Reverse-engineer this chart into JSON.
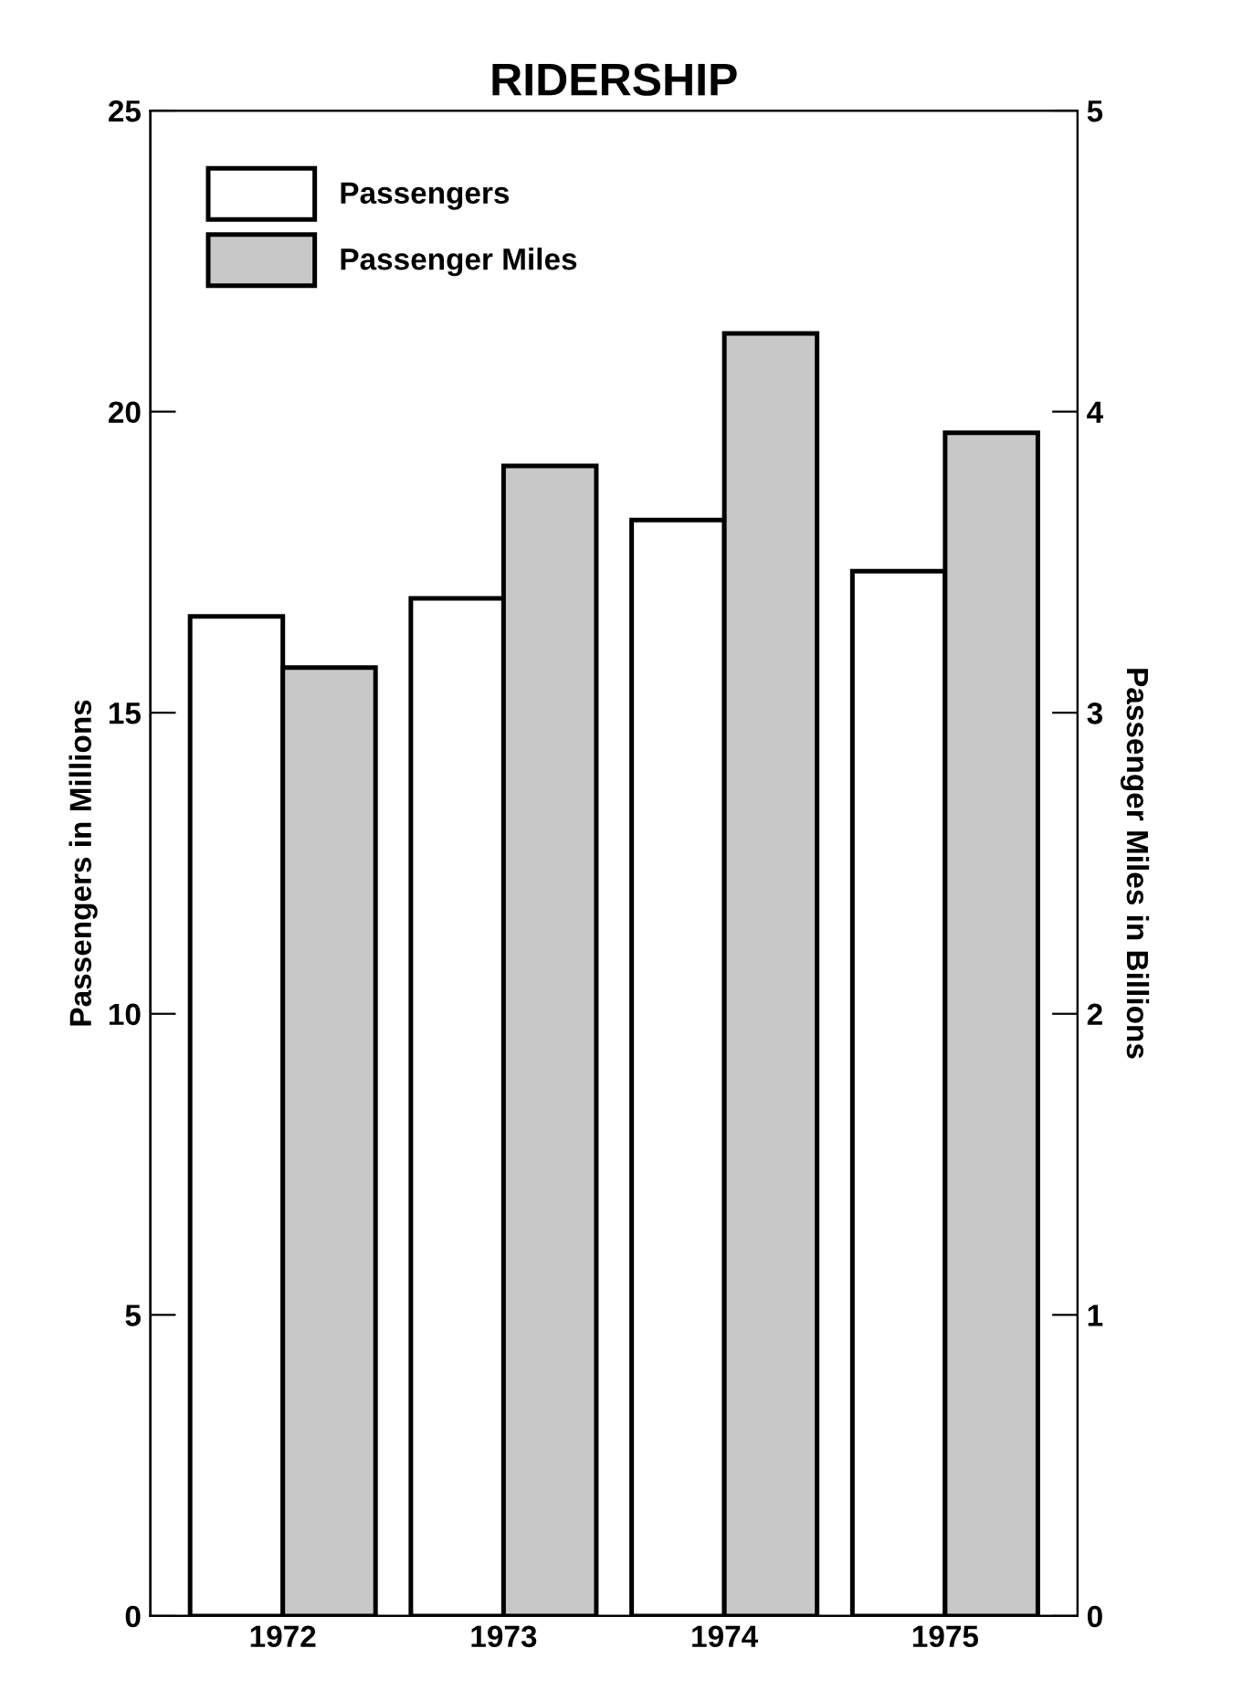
{
  "chart_data": {
    "type": "bar",
    "title": "RIDERSHIP",
    "categories": [
      "1972",
      "1973",
      "1974",
      "1975"
    ],
    "ylabel": "Passengers in Millions",
    "y2label": "Passenger Miles in Billions",
    "ylim": [
      0,
      25
    ],
    "yticks": [
      0,
      5,
      10,
      15,
      20,
      25
    ],
    "y2lim": [
      0,
      5
    ],
    "y2ticks": [
      0,
      1,
      2,
      3,
      4,
      5
    ],
    "series": [
      {
        "name": "Passengers",
        "color": "#ffffff",
        "values": [
          16.6,
          16.9,
          18.2,
          17.35
        ]
      },
      {
        "name": "Passenger Miles",
        "color": "#c8c8c8",
        "axis": "y2",
        "values": [
          3.15,
          3.82,
          4.26,
          3.93
        ]
      }
    ],
    "legend": "top left",
    "grid": false
  }
}
